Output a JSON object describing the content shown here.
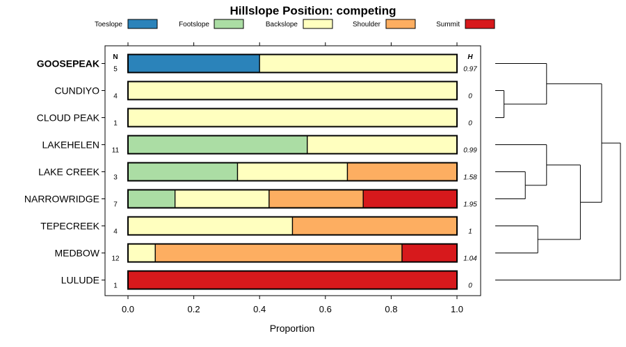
{
  "colors": {
    "Toeslope": "#2B83BA",
    "Footslope": "#ABDDA4",
    "Backslope": "#FFFFBF",
    "Shoulder": "#FDAE61",
    "Summit": "#D7191C"
  },
  "chart_data": {
    "type": "bar",
    "orientation": "horizontal",
    "stacked": true,
    "title": "Hillslope Position: competing",
    "xlabel": "Proportion",
    "ylabel": "",
    "xlim": [
      0,
      1
    ],
    "xticks": [
      "0.0",
      "0.2",
      "0.4",
      "0.6",
      "0.8",
      "1.0"
    ],
    "legend": [
      "Toeslope",
      "Footslope",
      "Backslope",
      "Shoulder",
      "Summit"
    ],
    "legend_position": "top",
    "n_header": "N",
    "h_header": "H",
    "highlight": "GOOSEPEAK",
    "categories": [
      "GOOSEPEAK",
      "CUNDIYO",
      "CLOUD PEAK",
      "LAKEHELEN",
      "LAKE CREEK",
      "NARROWRIDGE",
      "TEPECREEK",
      "MEDBOW",
      "LULUDE"
    ],
    "n": [
      "5",
      "4",
      "1",
      "11",
      "3",
      "7",
      "4",
      "12",
      "1"
    ],
    "h": [
      "0.97",
      "0",
      "0",
      "0.99",
      "1.58",
      "1.95",
      "1",
      "1.04",
      "0"
    ],
    "series": [
      {
        "name": "Toeslope",
        "values": [
          0.4,
          0,
          0,
          0,
          0,
          0,
          0,
          0,
          0
        ]
      },
      {
        "name": "Footslope",
        "values": [
          0,
          0,
          0,
          0.545,
          0.333,
          0.143,
          0,
          0,
          0
        ]
      },
      {
        "name": "Backslope",
        "values": [
          0.6,
          1,
          1,
          0.455,
          0.334,
          0.286,
          0.5,
          0.083,
          0
        ]
      },
      {
        "name": "Shoulder",
        "values": [
          0,
          0,
          0,
          0,
          0.333,
          0.286,
          0.5,
          0.75,
          0
        ]
      },
      {
        "name": "Summit",
        "values": [
          0,
          0,
          0,
          0,
          0,
          0.285,
          0,
          0.167,
          1
        ]
      }
    ],
    "dendrogram": {
      "leaves": [
        "GOOSEPEAK",
        "CUNDIYO",
        "CLOUD PEAK",
        "LAKEHELEN",
        "LAKE CREEK",
        "NARROWRIDGE",
        "TEPECREEK",
        "MEDBOW",
        "LULUDE"
      ],
      "merges": [
        {
          "left": "CUNDIYO",
          "right": "CLOUD PEAK",
          "height": 0.07
        },
        {
          "left": "GOOSEPEAK",
          "right": 0,
          "height": 0.41
        },
        {
          "left": "LAKE CREEK",
          "right": "NARROWRIDGE",
          "height": 0.24
        },
        {
          "left": "LAKEHELEN",
          "right": 2,
          "height": 0.41
        },
        {
          "left": "TEPECREEK",
          "right": "MEDBOW",
          "height": 0.34
        },
        {
          "left": 3,
          "right": 4,
          "height": 0.68
        },
        {
          "left": 1,
          "right": 5,
          "height": 0.85
        },
        {
          "left": 6,
          "right": "LULUDE",
          "height": 1.0
        }
      ]
    }
  }
}
